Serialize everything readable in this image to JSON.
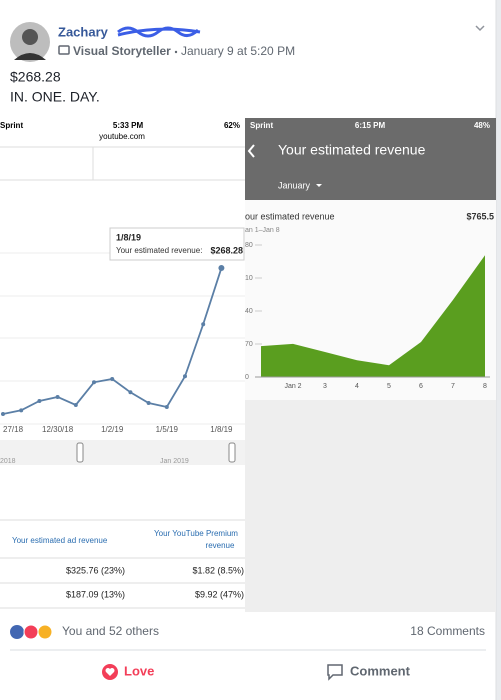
{
  "header": {
    "name": "Zachary",
    "badge": "Visual Storyteller",
    "time": "January 9 at 5:20 PM"
  },
  "post": {
    "lines": [
      "$268.28",
      "IN. ONE. DAY."
    ]
  },
  "left_screen": {
    "carrier": "Sprint",
    "clock": "5:33 PM",
    "battery": "62%",
    "url": "youtube.com",
    "tooltip": {
      "title": "1/8/19",
      "text": "Your estimated revenue:",
      "amount": "$268.28"
    },
    "scrollbar": [
      "2018",
      "Jan 2019"
    ],
    "table": {
      "headers": [
        [
          "Your estimated ad revenue"
        ],
        [
          "Your YouTube Premium",
          "revenue"
        ]
      ],
      "rows": [
        [
          "$325.76 (23%)",
          "$1.82 (8.5%)"
        ],
        [
          "$187.09 (13%)",
          "$9.92 (47%)"
        ]
      ]
    }
  },
  "right_screen": {
    "carrier": "Sprint",
    "clock": "6:15 PM",
    "battery": "48%",
    "title": "Your estimated revenue",
    "period": "January",
    "metric": "our estimated revenue",
    "total": "$765.5",
    "range": "an 1–Jan 8"
  },
  "chart_data": [
    {
      "type": "line",
      "color": "#5b7fa6",
      "categories": [
        "27/18",
        null,
        null,
        "12/30/18",
        null,
        null,
        "1/2/19",
        null,
        null,
        "1/5/19",
        null,
        null,
        "1/8/19"
      ],
      "values": [
        49.5,
        55,
        69,
        75,
        63,
        97,
        102,
        82,
        66,
        60,
        106,
        184,
        268.28
      ]
    },
    {
      "type": "area",
      "color": "#5a9e1f",
      "categories": [
        null,
        "Jan 2",
        "3",
        "4",
        "5",
        "6",
        "7",
        "8"
      ],
      "values": [
        68,
        73,
        55,
        37,
        26,
        77,
        170,
        268.28
      ],
      "ylim": [
        0,
        290.8
      ],
      "yticks": [
        0,
        {
          "value": 72.7,
          "label": "70"
        },
        {
          "value": 145.4,
          "label": "40"
        },
        {
          "value": 218.1,
          "label": "10"
        },
        {
          "value": 290.8,
          "label": "80"
        }
      ]
    }
  ],
  "footer": {
    "reactions": "You and 52 others",
    "comments": "18 Comments",
    "love": "Love",
    "comment": "Comment"
  }
}
